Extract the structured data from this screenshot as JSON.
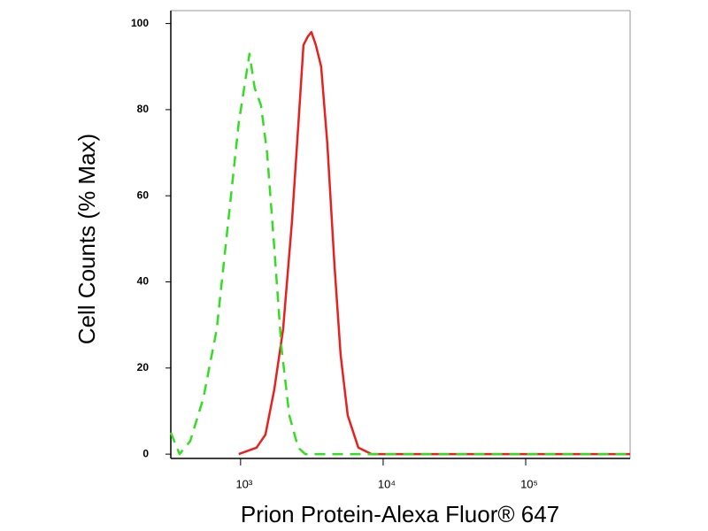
{
  "chart_data": {
    "type": "line",
    "x_label": "Prion Protein-Alexa Fluor® 647",
    "y_label": "Cell Counts (% Max)",
    "xscale": "log",
    "xlim": [
      324,
      540000
    ],
    "ylim": [
      -1,
      103
    ],
    "xticks": [
      {
        "value": 1000,
        "label": "10³"
      },
      {
        "value": 10000,
        "label": "10⁴"
      },
      {
        "value": 100000,
        "label": "10⁵"
      }
    ],
    "yticks": [
      0,
      20,
      40,
      60,
      80,
      100
    ],
    "series": [
      {
        "color": "#e8201e",
        "dash": false,
        "x": [
          971,
          1294,
          1493,
          1722,
          1987,
          2292,
          2570,
          2761,
          2965,
          3140,
          3372,
          3675,
          4062,
          4553,
          5035,
          5645,
          6698,
          8298,
          540000
        ],
        "values": [
          0,
          1.5,
          4.5,
          15,
          29,
          54,
          79,
          95,
          97,
          98,
          95,
          90,
          72,
          44,
          23,
          9,
          1.5,
          0,
          0
        ]
      },
      {
        "color": "#33dd22",
        "dash": true,
        "x": [
          324,
          373,
          443,
          548,
          680,
          819,
          971,
          1154,
          1257,
          1390,
          1535,
          1722,
          1931,
          2198,
          2535,
          2840,
          540000
        ],
        "values": [
          5,
          0,
          3,
          13,
          29,
          54,
          77,
          93,
          85,
          81,
          70,
          48,
          25,
          9,
          1.5,
          0,
          0
        ]
      }
    ]
  }
}
